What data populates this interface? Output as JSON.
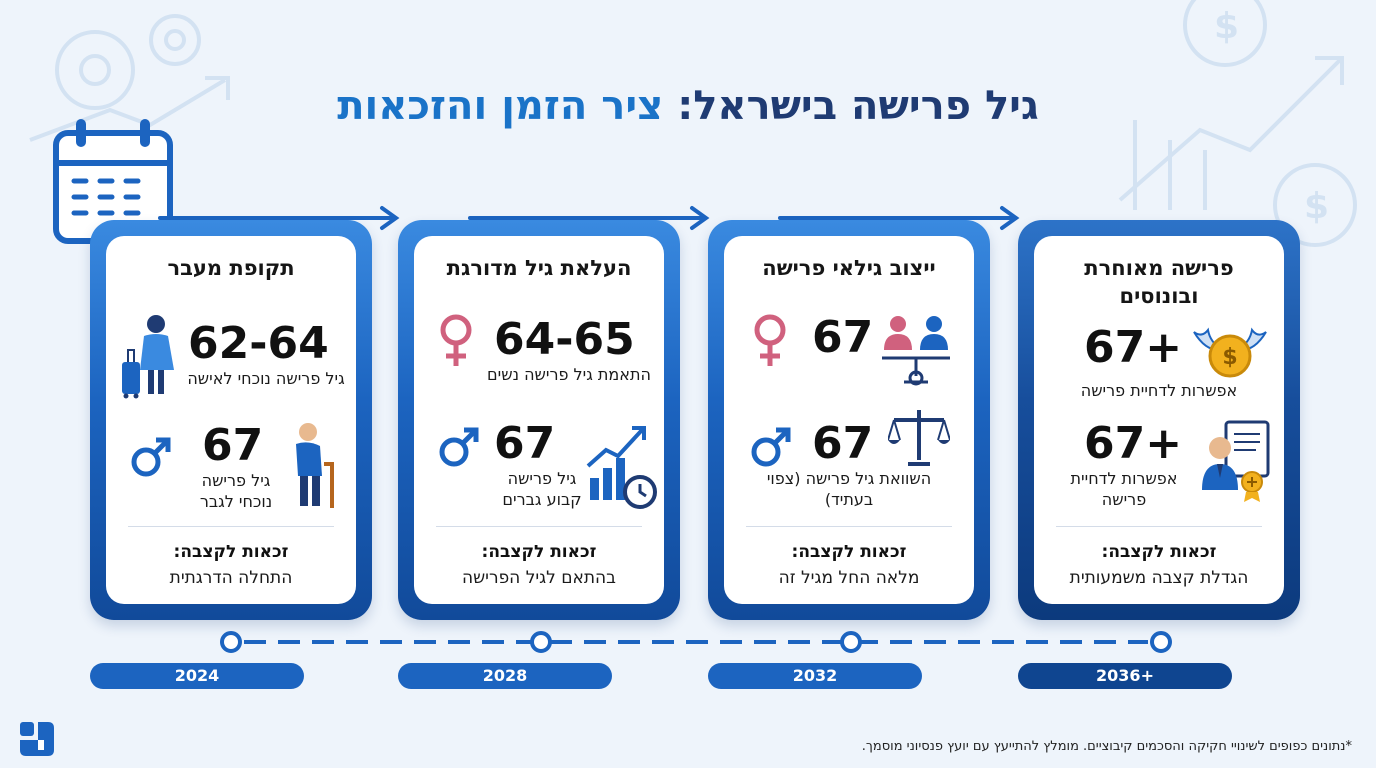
{
  "title": {
    "part1": "גיל פרישה בישראל:",
    "part2": "ציר הזמן והזכאות"
  },
  "colors": {
    "primary": "#1c64c0",
    "dark": "#0f4590",
    "title": "#1f3b73",
    "accent": "#1a73c8",
    "female": "#d0617e"
  },
  "cards": [
    {
      "title": "תקופת מעבר",
      "row1": {
        "value": "62-64",
        "desc": "גיל פרישה נוכחי לאישה",
        "icon": "woman-traveler-icon"
      },
      "row2": {
        "value": "67",
        "desc": "גיל פרישה נוכחי לגבר",
        "icon": "elderly-man-cane-icon"
      },
      "benefit_label": "זכאות לקצבה:",
      "benefit_value": "התחלה הדרגתית",
      "year": "2024"
    },
    {
      "title": "העלאת גיל מדורגת",
      "row1": {
        "value": "64-65",
        "desc": "התאמת גיל פרישה נשים",
        "icon": "female-symbol-icon"
      },
      "row2": {
        "value": "67",
        "desc": "גיל פרישה קבוע גברים",
        "icon": "growth-chart-clock-icon"
      },
      "benefit_label": "זכאות לקצבה:",
      "benefit_value": "בהתאם לגיל הפרישה",
      "year": "2028"
    },
    {
      "title": "ייצוב גילאי פרישה",
      "row1": {
        "value": "67",
        "desc": "",
        "icon": "couple-balance-icon"
      },
      "row2": {
        "value": "67",
        "desc": "השוואת גיל פרישה (צפוי בעתיד)",
        "icon": "scales-icon"
      },
      "benefit_label": "זכאות לקצבה:",
      "benefit_value": "מלאה החל מגיל זה",
      "year": "2032"
    },
    {
      "title": "פרישה מאוחרת ובונוסים",
      "row1": {
        "value": "67+",
        "desc": "אפשרות לדחיית פרישה",
        "icon": "winged-coin-icon"
      },
      "row2": {
        "value": "67+",
        "desc": "אפשרות לדחיית פרישה",
        "icon": "businessman-document-icon"
      },
      "benefit_label": "זכאות לקצבה:",
      "benefit_value": "הגדלת קצבה משמעותית",
      "year": "2036+"
    }
  ],
  "footnote": "*נתונים כפופים לשינויי חקיקה והסכמים קיבוציים. מומלץ להתייעץ עם יועץ פנסיוני מוסמך."
}
